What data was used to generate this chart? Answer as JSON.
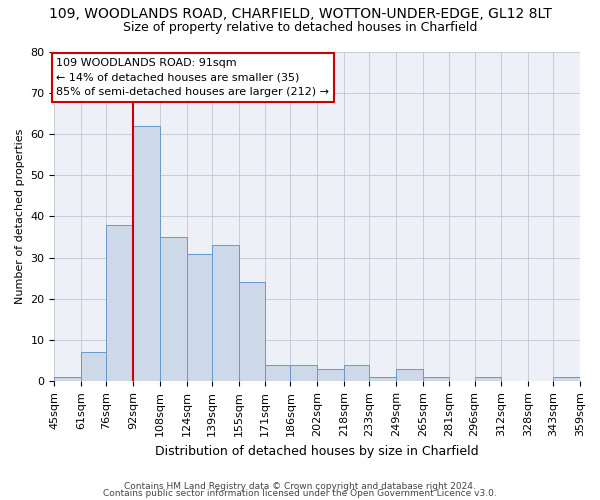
{
  "title": "109, WOODLANDS ROAD, CHARFIELD, WOTTON-UNDER-EDGE, GL12 8LT",
  "subtitle": "Size of property relative to detached houses in Charfield",
  "xlabel": "Distribution of detached houses by size in Charfield",
  "ylabel": "Number of detached properties",
  "bar_color": "#cdd9e8",
  "bar_edge_color": "#6699cc",
  "grid_color": "#bbbbcc",
  "background_color": "#ffffff",
  "plot_bg_color": "#eef0f8",
  "vline_x": 92,
  "vline_color": "#cc0000",
  "annotation_line1": "109 WOODLANDS ROAD: 91sqm",
  "annotation_line2": "← 14% of detached houses are smaller (35)",
  "annotation_line3": "85% of semi-detached houses are larger (212) →",
  "annotation_box_color": "#ffffff",
  "annotation_box_edge": "#cc0000",
  "bins": [
    45,
    61,
    76,
    92,
    108,
    124,
    139,
    155,
    171,
    186,
    202,
    218,
    233,
    249,
    265,
    281,
    296,
    312,
    328,
    343,
    359
  ],
  "counts": [
    1,
    7,
    38,
    62,
    35,
    31,
    33,
    24,
    4,
    4,
    3,
    4,
    1,
    3,
    1,
    0,
    1,
    0,
    0,
    1
  ],
  "footer1": "Contains HM Land Registry data © Crown copyright and database right 2024.",
  "footer2": "Contains public sector information licensed under the Open Government Licence v3.0.",
  "ylim": [
    0,
    80
  ],
  "yticks": [
    0,
    10,
    20,
    30,
    40,
    50,
    60,
    70,
    80
  ],
  "title_fontsize": 10,
  "subtitle_fontsize": 9,
  "ylabel_fontsize": 8,
  "xlabel_fontsize": 9,
  "tick_fontsize": 8,
  "annotation_fontsize": 8,
  "footer_fontsize": 6.5
}
